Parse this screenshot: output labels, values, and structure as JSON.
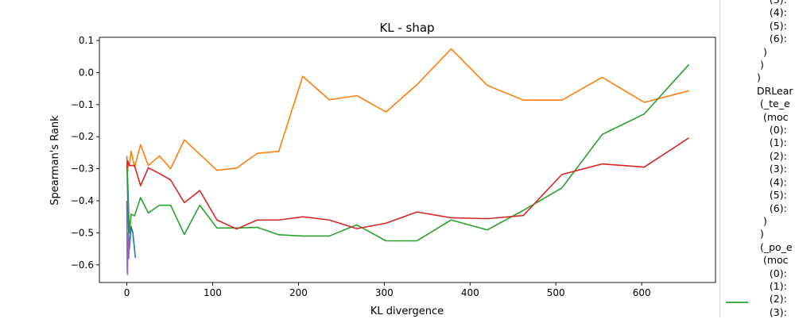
{
  "chart_data": {
    "type": "line",
    "title": "KL - shap",
    "xlabel": "KL divergence",
    "ylabel": "Spearman's Rank",
    "xlim": [
      -32,
      686
    ],
    "ylim": [
      -0.655,
      0.11
    ],
    "xticks": [
      0,
      100,
      200,
      300,
      400,
      500,
      600
    ],
    "yticks": [
      -0.6,
      -0.5,
      -0.4,
      -0.3,
      -0.2,
      -0.1,
      0.0,
      0.1
    ],
    "xtick_labels": [
      "0",
      "100",
      "200",
      "300",
      "400",
      "500",
      "600"
    ],
    "ytick_labels": [
      "−0.6",
      "−0.5",
      "−0.4",
      "−0.3",
      "−0.2",
      "−0.1",
      "0.0",
      "0.1"
    ],
    "grid": false,
    "series": [
      {
        "color": "#1f77b4",
        "x": [
          0,
          0.6,
          1.2,
          2,
          3,
          5,
          7,
          10
        ],
        "y": [
          -0.26,
          -0.34,
          -0.42,
          -0.5,
          -0.55,
          -0.48,
          -0.5,
          -0.578
        ]
      },
      {
        "color": "#ff7f0e",
        "x": [
          0,
          1,
          2,
          3,
          5,
          9,
          16,
          25,
          38,
          51,
          67,
          85,
          105,
          128,
          152,
          177,
          205,
          236,
          268,
          302,
          338,
          378,
          420,
          462,
          507,
          554,
          603,
          655
        ],
        "y": [
          -0.26,
          -0.31,
          -0.28,
          -0.29,
          -0.245,
          -0.295,
          -0.225,
          -0.29,
          -0.26,
          -0.3,
          -0.21,
          -0.255,
          -0.305,
          -0.298,
          -0.252,
          -0.246,
          -0.012,
          -0.085,
          -0.072,
          -0.123,
          -0.038,
          0.074,
          -0.04,
          -0.086,
          -0.086,
          -0.015,
          -0.093,
          -0.057
        ]
      },
      {
        "color": "#2ca02c",
        "x": [
          0,
          1,
          2,
          3,
          5,
          9,
          16,
          25,
          38,
          51,
          67,
          85,
          105,
          128,
          152,
          177,
          205,
          236,
          268,
          302,
          338,
          378,
          420,
          462,
          507,
          554,
          603,
          655
        ],
        "y": [
          -0.29,
          -0.33,
          -0.42,
          -0.5,
          -0.442,
          -0.447,
          -0.39,
          -0.438,
          -0.414,
          -0.414,
          -0.505,
          -0.414,
          -0.485,
          -0.485,
          -0.483,
          -0.506,
          -0.51,
          -0.51,
          -0.475,
          -0.525,
          -0.525,
          -0.46,
          -0.491,
          -0.43,
          -0.36,
          -0.193,
          -0.129,
          0.025
        ]
      },
      {
        "color": "#d62728",
        "x": [
          0,
          1,
          2,
          3,
          5,
          9,
          16,
          25,
          38,
          51,
          67,
          85,
          105,
          128,
          152,
          177,
          205,
          236,
          268,
          302,
          338,
          378,
          420,
          462,
          507,
          554,
          603,
          655
        ],
        "y": [
          -0.3,
          -0.275,
          -0.285,
          -0.29,
          -0.29,
          -0.29,
          -0.353,
          -0.297,
          -0.315,
          -0.335,
          -0.406,
          -0.368,
          -0.46,
          -0.488,
          -0.46,
          -0.46,
          -0.45,
          -0.46,
          -0.487,
          -0.47,
          -0.435,
          -0.453,
          -0.456,
          -0.446,
          -0.318,
          -0.285,
          -0.295,
          -0.204
        ]
      },
      {
        "color": "#9467bd",
        "x": [
          0,
          0.4,
          0.8,
          1.2,
          1.6,
          2.2,
          3
        ],
        "y": [
          -0.4,
          -0.62,
          -0.63,
          -0.56,
          -0.5,
          -0.58,
          -0.52
        ]
      }
    ]
  },
  "legend_fragment": {
    "line_color": "#2ca02c",
    "text": "    (3):\n    (4):\n    (5):\n    (6):\n  )\n )\n)\nDRLear\n (_te_e\n  (moc\n    (0):\n    (1):\n    (2):\n    (3):\n    (4):\n    (5):\n    (6):\n  )\n )\n (_po_e\n  (moc\n    (0):\n    (1):\n    (2):\n    (3):"
  }
}
